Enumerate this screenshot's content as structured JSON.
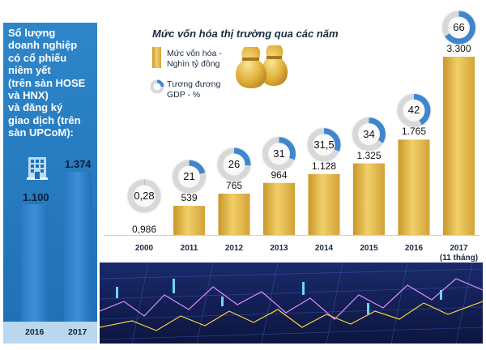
{
  "left_panel": {
    "text_lines": [
      "Số lượng",
      "doanh nghiệp",
      "có cổ phiếu",
      "niêm yết",
      "(trên sàn HOSE",
      "và HNX)",
      "và đăng ký",
      "giao dịch (trên",
      "sàn UPCoM):"
    ],
    "icon": "building-icon",
    "bars": [
      {
        "year": "2016",
        "value_label": "1.100",
        "value": 1100
      },
      {
        "year": "2017",
        "value_label": "1.374",
        "value": 1374
      }
    ]
  },
  "chart_title": "Mức vốn hóa thị trường qua các năm",
  "legend": {
    "bar_label_lines": [
      "Mức vốn hóa -",
      "Nghìn tỷ đồng"
    ],
    "ring_label_lines": [
      "Tương đương",
      "GDP - %"
    ],
    "icon": "money-bag-icon"
  },
  "colors": {
    "panel_blue": "#2472bd",
    "bar_gold": "#e4b73f",
    "ring_blue": "#3f86cf",
    "ring_grey": "#d8d8d8"
  },
  "chart_data": {
    "type": "bar",
    "title": "Mức vốn hóa thị trường qua các năm",
    "categories": [
      "2000",
      "2011",
      "2012",
      "2013",
      "2014",
      "2015",
      "2016",
      "2017"
    ],
    "category_sublabels": [
      "",
      "",
      "",
      "",
      "",
      "",
      "",
      "(11 tháng)"
    ],
    "series": [
      {
        "name": "Mức vốn hóa - Nghìn tỷ đồng",
        "values": [
          0.986,
          539,
          765,
          964,
          1128,
          1325,
          1765,
          3300
        ],
        "labels": [
          "0,986",
          "539",
          "765",
          "964",
          "1.128",
          "1.325",
          "1.765",
          "3.300"
        ]
      },
      {
        "name": "Tương đương GDP - %",
        "values": [
          0.28,
          21,
          26,
          31,
          31.5,
          34,
          42,
          66
        ],
        "labels": [
          "0,28",
          "21",
          "26",
          "31",
          "31,5",
          "34",
          "42",
          "66"
        ]
      }
    ],
    "ylim": [
      0,
      3300
    ]
  }
}
